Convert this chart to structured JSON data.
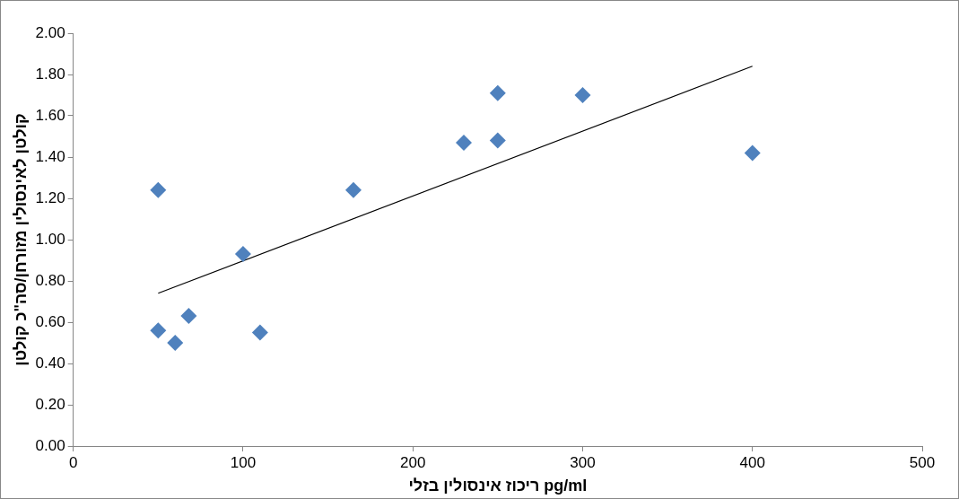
{
  "chart_data": {
    "type": "scatter",
    "xlabel": "ריכוז אינסולין בזלי pg/ml",
    "ylabel": "קולטן לאינסולין מזורחן/סה\"כ קולטן",
    "xlim": [
      0,
      500
    ],
    "xticks": [
      0,
      100,
      200,
      300,
      400,
      500
    ],
    "ylim": [
      0,
      2
    ],
    "yticks": [
      {
        "value": 0,
        "label": "0.00"
      },
      {
        "value": 0.2,
        "label": "0.20"
      },
      {
        "value": 0.4,
        "label": "0.40"
      },
      {
        "value": 0.6,
        "label": "0.60"
      },
      {
        "value": 0.8,
        "label": "0.80"
      },
      {
        "value": 1,
        "label": "1.00"
      },
      {
        "value": 1.2,
        "label": "1.20"
      },
      {
        "value": 1.4,
        "label": "1.40"
      },
      {
        "value": 1.6,
        "label": "1.60"
      },
      {
        "value": 1.8,
        "label": "1.80"
      },
      {
        "value": 2,
        "label": "2.00"
      }
    ],
    "grid": false,
    "legend": false,
    "marker": "diamond",
    "series": [
      {
        "color": "#4f81bd",
        "x": [
          50,
          50,
          60,
          68,
          100,
          110,
          165,
          230,
          250,
          250,
          300,
          400
        ],
        "values": [
          1.24,
          0.56,
          0.5,
          0.63,
          0.93,
          0.55,
          1.24,
          1.47,
          1.71,
          1.48,
          1.7,
          1.42
        ]
      },
      {
        "type": "line",
        "color": "#000000",
        "marker": "none",
        "line_style": "solid",
        "x": [
          50,
          400
        ],
        "values": [
          0.74,
          1.84
        ]
      }
    ]
  }
}
